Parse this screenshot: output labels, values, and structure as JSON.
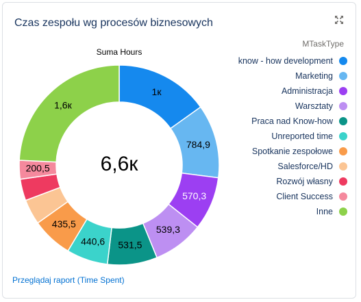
{
  "header": {
    "title": "Czas zespołu wg procesów biznesowych"
  },
  "icons": {
    "expand": "expand-icon"
  },
  "footer": {
    "link_label": "Przeglądaj raport (Time Spent)"
  },
  "colors": {
    "title": "#16325c",
    "link": "#0070d2"
  },
  "chart_data": {
    "type": "donut",
    "subtitle": "Suma Hours",
    "center_label": "6,6к",
    "legend_title": "MTaskType",
    "legend_position": "right",
    "total_approx": 6600,
    "slices": [
      {
        "name": "know - how development",
        "value": 1000,
        "label": "1к",
        "color": "#1589ee",
        "label_color": "#000000"
      },
      {
        "name": "Marketing",
        "value": 784.9,
        "label": "784,9",
        "color": "#67b7f1",
        "label_color": "#000000"
      },
      {
        "name": "Administracja",
        "value": 570.3,
        "label": "570,3",
        "color": "#9c3ff2",
        "label_color": "#ffffff"
      },
      {
        "name": "Warsztaty",
        "value": 539.3,
        "label": "539,3",
        "color": "#bd8ff2",
        "label_color": "#000000"
      },
      {
        "name": "Praca nad Know-how",
        "value": 531.5,
        "label": "531,5",
        "color": "#0b9488",
        "label_color": "#000000"
      },
      {
        "name": "Unreported time",
        "value": 440.6,
        "label": "440,6",
        "color": "#3bd3cb",
        "label_color": "#000000"
      },
      {
        "name": "Spotkanie zespołowe",
        "value": 435.5,
        "label": "435,5",
        "color": "#f99b4a",
        "label_color": "#000000"
      },
      {
        "name": "Salesforce/HD",
        "value": 270,
        "label": "",
        "color": "#fbc594",
        "label_color": "#000000"
      },
      {
        "name": "Rozwój własny",
        "value": 230,
        "label": "",
        "color": "#ee3a60",
        "label_color": "#000000"
      },
      {
        "name": "Client Success",
        "value": 200.5,
        "label": "200,5",
        "color": "#f5899d",
        "label_color": "#000000"
      },
      {
        "name": "Inne",
        "value": 1600,
        "label": "1,6к",
        "color": "#8dd14a",
        "label_color": "#000000"
      }
    ]
  }
}
